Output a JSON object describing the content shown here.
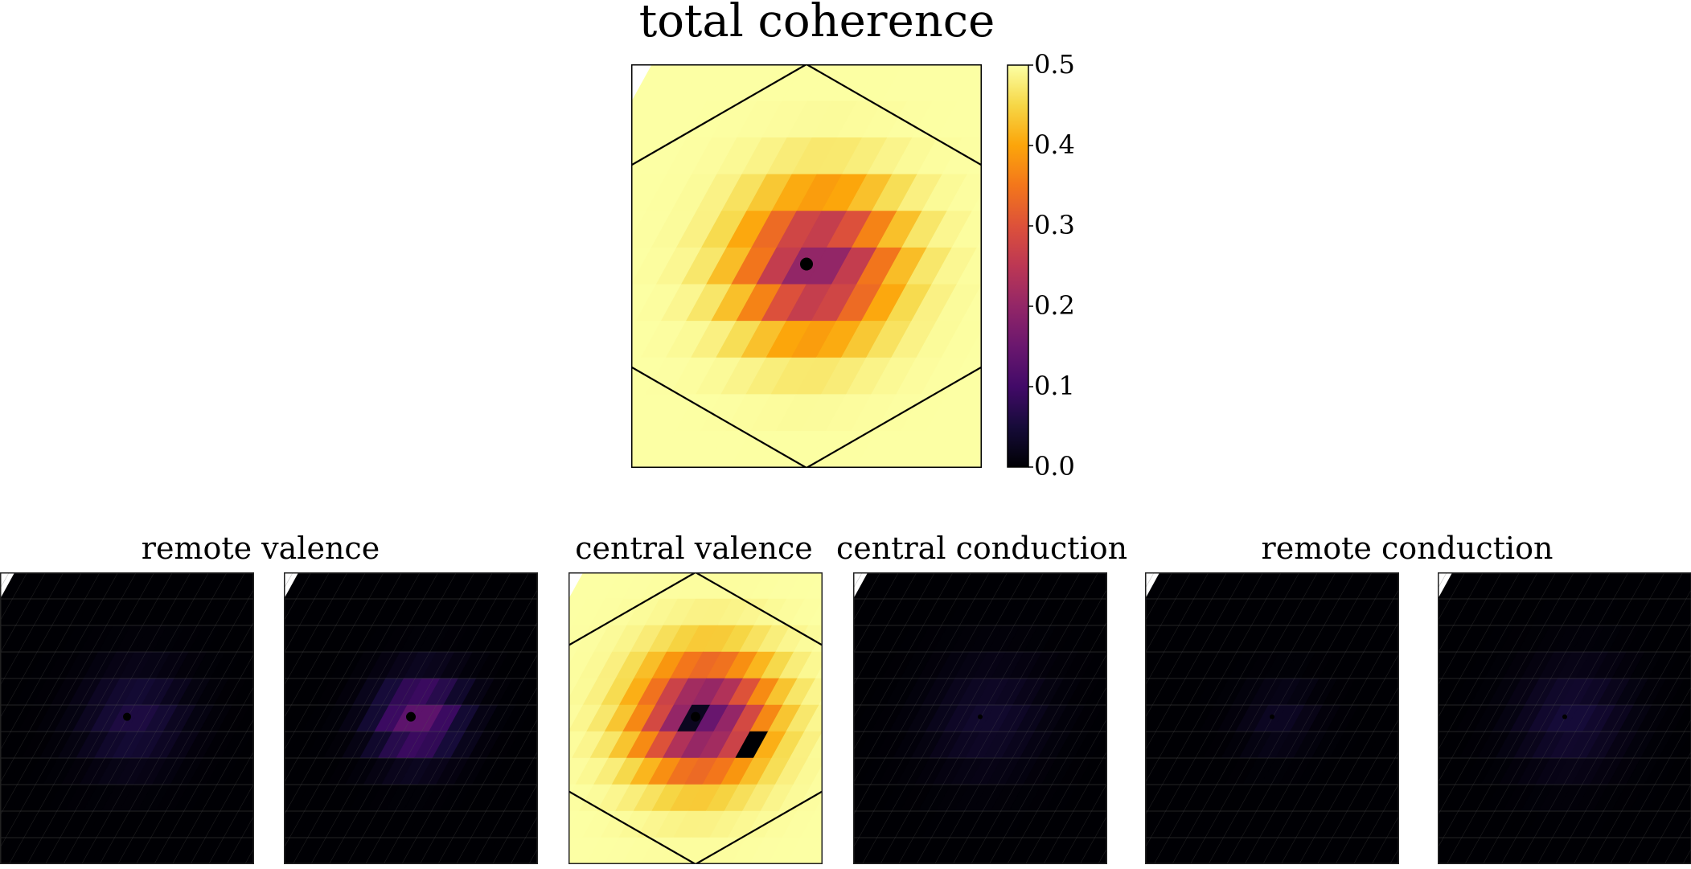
{
  "chart_data": [
    {
      "type": "heatmap",
      "title": "total coherence",
      "colormap": "inferno",
      "vmin": 0.0,
      "vmax": 0.5,
      "colorbar_ticks": [
        "0.0",
        "0.1",
        "0.2",
        "0.3",
        "0.4",
        "0.5"
      ],
      "center_marker": "black-dot",
      "brillouin_zone_overlay": true,
      "peak_values": [
        0.15,
        0.2,
        0.3,
        0.4,
        0.45,
        0.5
      ]
    },
    {
      "type": "heatmap",
      "title": "remote valence",
      "panels": 2,
      "colormap": "inferno",
      "peak_values": [
        0.04,
        0.42
      ]
    },
    {
      "type": "heatmap",
      "title": "central valence",
      "colormap": "inferno",
      "brillouin_zone_overlay": true,
      "peak_values": [
        0.0,
        0.2,
        0.3,
        0.4,
        0.5
      ]
    },
    {
      "type": "heatmap",
      "title": "central conduction",
      "colormap": "inferno",
      "peak_values": [
        0.02
      ]
    },
    {
      "type": "heatmap",
      "title": "remote conduction",
      "panels": 2,
      "colormap": "inferno",
      "peak_values": [
        0.03,
        0.04
      ]
    }
  ],
  "colors": {
    "inferno_low": "#000004",
    "inferno_mid": "#b4366b",
    "inferno_high": "#fcffa4",
    "overlay_line": "#000000",
    "grid_line": "#555555"
  }
}
